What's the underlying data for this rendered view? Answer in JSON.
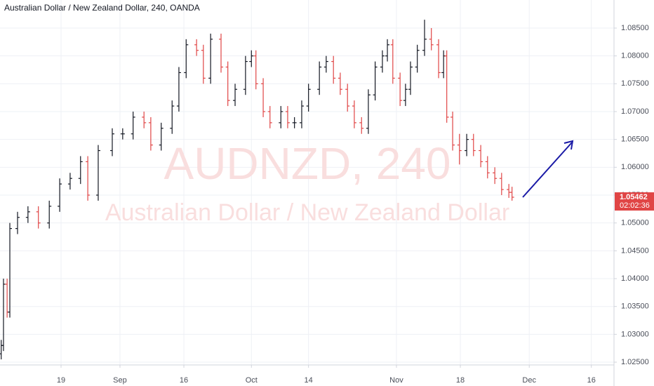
{
  "chart_data": {
    "type": "ohlc",
    "title": "Australian Dollar / New Zealand Dollar, 240, OANDA",
    "watermark_symbol": "AUDNZD, 240",
    "watermark_name": "Australian Dollar / New Zealand Dollar",
    "last_price_label": "1.05462",
    "countdown": "02:02:36",
    "up_color": "#131722",
    "down_color": "#e04545",
    "grid": true,
    "xlim": [
      -13.47,
      122.0
    ],
    "ylim": [
      1.0245,
      1.09004
    ],
    "xticks": [
      {
        "value": 0,
        "label": "19"
      },
      {
        "value": 13.0,
        "label": "Sep"
      },
      {
        "value": 27.1,
        "label": "16"
      },
      {
        "value": 42.0,
        "label": "Oct"
      },
      {
        "value": 54.6,
        "label": "14"
      },
      {
        "value": 74.0,
        "label": "Nov"
      },
      {
        "value": 88.1,
        "label": "18"
      },
      {
        "value": 103.3,
        "label": "Dec"
      },
      {
        "value": 117.0,
        "label": "16"
      }
    ],
    "yticks": [
      {
        "value": 1.025,
        "label": "1.02500"
      },
      {
        "value": 1.03,
        "label": "1.03000"
      },
      {
        "value": 1.035,
        "label": "1.03500"
      },
      {
        "value": 1.04,
        "label": "1.04000"
      },
      {
        "value": 1.045,
        "label": "1.04500"
      },
      {
        "value": 1.05,
        "label": "1.05000"
      },
      {
        "value": 1.055,
        "label": "1.05500"
      },
      {
        "value": 1.06,
        "label": "1.06000"
      },
      {
        "value": 1.065,
        "label": "1.06500"
      },
      {
        "value": 1.07,
        "label": "1.07000"
      },
      {
        "value": 1.075,
        "label": "1.07500"
      },
      {
        "value": 1.08,
        "label": "1.08000"
      },
      {
        "value": 1.085,
        "label": "1.08500"
      }
    ],
    "x": [
      -13.2,
      -12.7,
      -11.9,
      -11.3,
      -9.6,
      -7.3,
      -5.0,
      -2.6,
      -0.3,
      2.0,
      4.3,
      5.9,
      8.2,
      11.3,
      13.6,
      15.9,
      18.3,
      19.8,
      22.1,
      24.5,
      26.0,
      27.6,
      29.9,
      31.4,
      33.0,
      35.3,
      36.8,
      38.4,
      40.7,
      42.0,
      43.0,
      44.6,
      46.1,
      48.5,
      50.0,
      51.5,
      53.1,
      54.6,
      57.0,
      58.5,
      60.1,
      61.6,
      63.2,
      64.7,
      66.3,
      67.8,
      69.3,
      70.9,
      72.0,
      73.2,
      74.8,
      76.0,
      77.1,
      78.6,
      80.2,
      81.7,
      83.3,
      84.4,
      85.1,
      86.4,
      87.9,
      89.5,
      91.0,
      92.6,
      94.1,
      95.7,
      97.2,
      98.8,
      99.5
    ],
    "open": [
      1.0265,
      1.028,
      1.039,
      1.034,
      1.049,
      1.051,
      1.052,
      1.05,
      1.053,
      1.057,
      1.058,
      1.061,
      1.055,
      1.063,
      1.066,
      1.066,
      1.069,
      1.068,
      1.064,
      1.067,
      1.071,
      1.077,
      1.082,
      1.081,
      1.076,
      1.083,
      1.078,
      1.072,
      1.074,
      1.079,
      1.08,
      1.075,
      1.07,
      1.068,
      1.07,
      1.068,
      1.068,
      1.071,
      1.074,
      1.078,
      1.079,
      1.076,
      1.074,
      1.071,
      1.068,
      1.067,
      1.073,
      1.078,
      1.08,
      1.082,
      1.076,
      1.072,
      1.074,
      1.078,
      1.081,
      1.083,
      1.082,
      1.077,
      1.08,
      1.069,
      1.064,
      1.063,
      1.065,
      1.063,
      1.061,
      1.059,
      1.058,
      1.056,
      1.0555
    ],
    "high": [
      1.029,
      1.04,
      1.04,
      1.05,
      1.052,
      1.053,
      1.053,
      1.054,
      1.058,
      1.059,
      1.062,
      1.062,
      1.064,
      1.067,
      1.067,
      1.07,
      1.07,
      1.069,
      1.068,
      1.072,
      1.078,
      1.083,
      1.083,
      1.082,
      1.084,
      1.084,
      1.079,
      1.075,
      1.08,
      1.081,
      1.081,
      1.076,
      1.071,
      1.071,
      1.071,
      1.069,
      1.072,
      1.075,
      1.079,
      1.08,
      1.08,
      1.077,
      1.075,
      1.072,
      1.069,
      1.074,
      1.079,
      1.081,
      1.083,
      1.083,
      1.077,
      1.075,
      1.079,
      1.082,
      1.0865,
      1.085,
      1.083,
      1.081,
      1.081,
      1.07,
      1.066,
      1.066,
      1.066,
      1.064,
      1.062,
      1.06,
      1.059,
      1.057,
      1.0565
    ],
    "low": [
      1.0255,
      1.027,
      1.033,
      1.033,
      1.048,
      1.05,
      1.049,
      1.049,
      1.052,
      1.056,
      1.057,
      1.054,
      1.054,
      1.062,
      1.065,
      1.065,
      1.067,
      1.063,
      1.063,
      1.066,
      1.07,
      1.076,
      1.08,
      1.075,
      1.075,
      1.077,
      1.071,
      1.071,
      1.073,
      1.078,
      1.074,
      1.069,
      1.067,
      1.067,
      1.067,
      1.067,
      1.067,
      1.07,
      1.073,
      1.077,
      1.075,
      1.073,
      1.07,
      1.067,
      1.066,
      1.066,
      1.072,
      1.077,
      1.079,
      1.075,
      1.071,
      1.071,
      1.073,
      1.077,
      1.08,
      1.081,
      1.076,
      1.076,
      1.068,
      1.063,
      1.0605,
      1.062,
      1.062,
      1.06,
      1.058,
      1.057,
      1.055,
      1.0545,
      1.054
    ],
    "close": [
      1.028,
      1.039,
      1.034,
      1.049,
      1.051,
      1.052,
      1.05,
      1.053,
      1.057,
      1.058,
      1.061,
      1.055,
      1.063,
      1.066,
      1.066,
      1.069,
      1.068,
      1.064,
      1.067,
      1.071,
      1.077,
      1.082,
      1.081,
      1.076,
      1.083,
      1.078,
      1.072,
      1.074,
      1.079,
      1.08,
      1.075,
      1.07,
      1.068,
      1.07,
      1.068,
      1.068,
      1.071,
      1.074,
      1.078,
      1.079,
      1.076,
      1.074,
      1.071,
      1.068,
      1.067,
      1.073,
      1.078,
      1.08,
      1.082,
      1.076,
      1.072,
      1.074,
      1.078,
      1.081,
      1.083,
      1.082,
      1.077,
      1.08,
      1.069,
      1.064,
      1.063,
      1.065,
      1.063,
      1.061,
      1.059,
      1.058,
      1.056,
      1.0555,
      1.05462
    ]
  }
}
